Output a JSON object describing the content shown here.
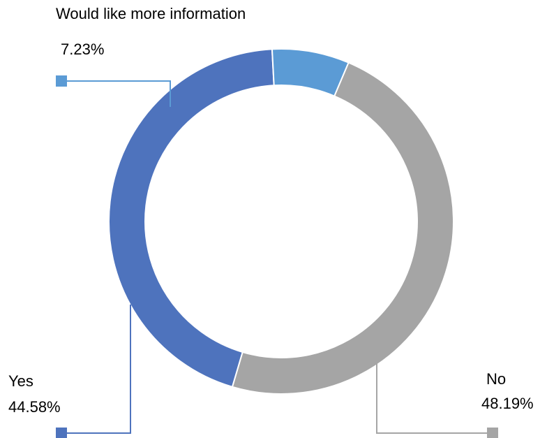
{
  "chart_data": {
    "type": "pie",
    "variant": "donut",
    "title": "",
    "slices": [
      {
        "label": "No",
        "value": 48.19,
        "value_label": "48.19%",
        "color": "#a5a5a5"
      },
      {
        "label": "Yes",
        "value": 44.58,
        "value_label": "44.58%",
        "color": "#4e73bd"
      },
      {
        "label": "Would like more information",
        "value": 7.23,
        "value_label": "7.23%",
        "color": "#5b9bd5"
      }
    ],
    "legend": "none",
    "data_labels": "outside-with-leader-lines"
  }
}
